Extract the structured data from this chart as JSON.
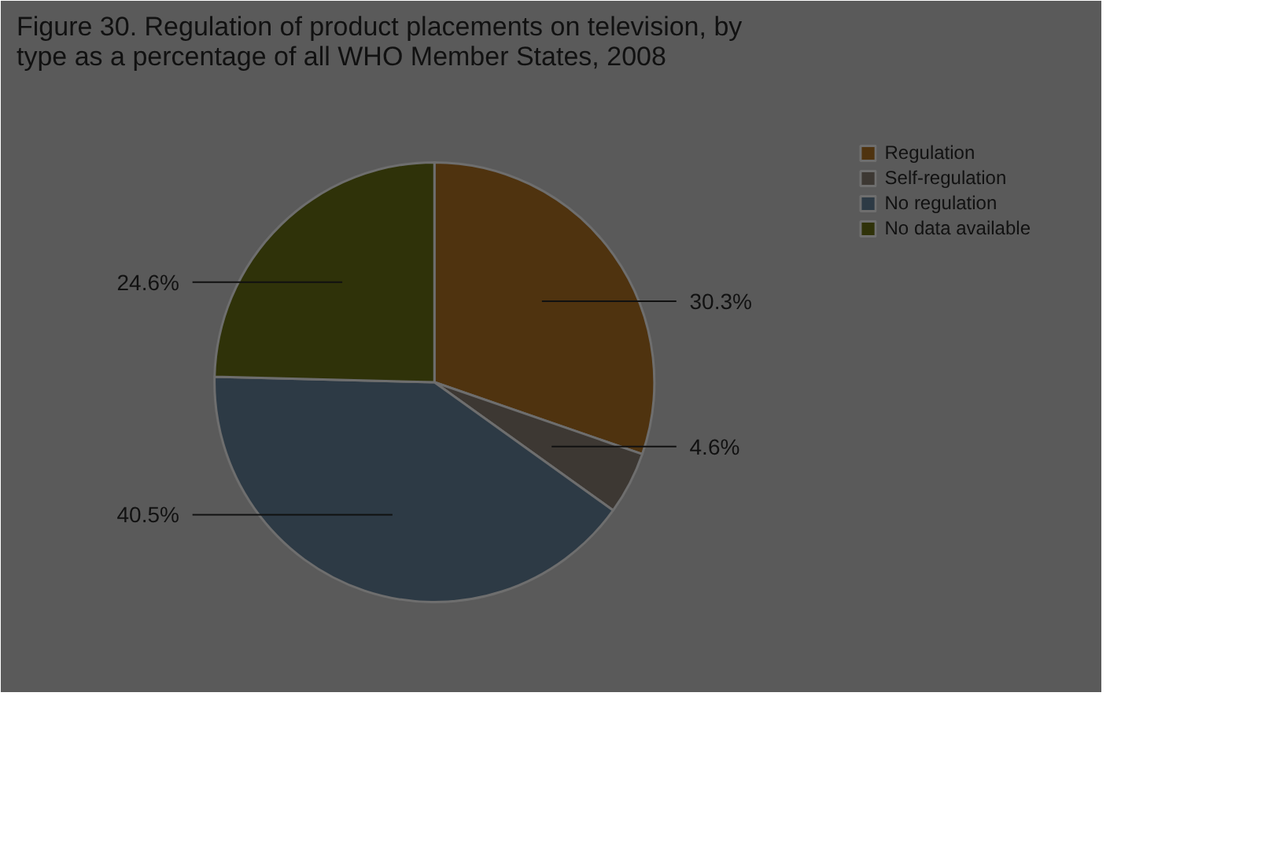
{
  "chart_data": {
    "type": "pie",
    "title": "Figure 30. Regulation of product placements on television, by type as a percentage of all WHO Member States, 2008",
    "categories": [
      "Regulation",
      "Self-regulation",
      "No regulation",
      "No data available"
    ],
    "values": [
      30.3,
      4.6,
      40.5,
      24.6
    ],
    "colors": [
      "#4f330f",
      "#3d3833",
      "#2d3a45",
      "#2f3209"
    ],
    "value_labels": [
      "30.3%",
      "4.6%",
      "40.5%",
      "24.6%"
    ],
    "legend": "top right"
  }
}
